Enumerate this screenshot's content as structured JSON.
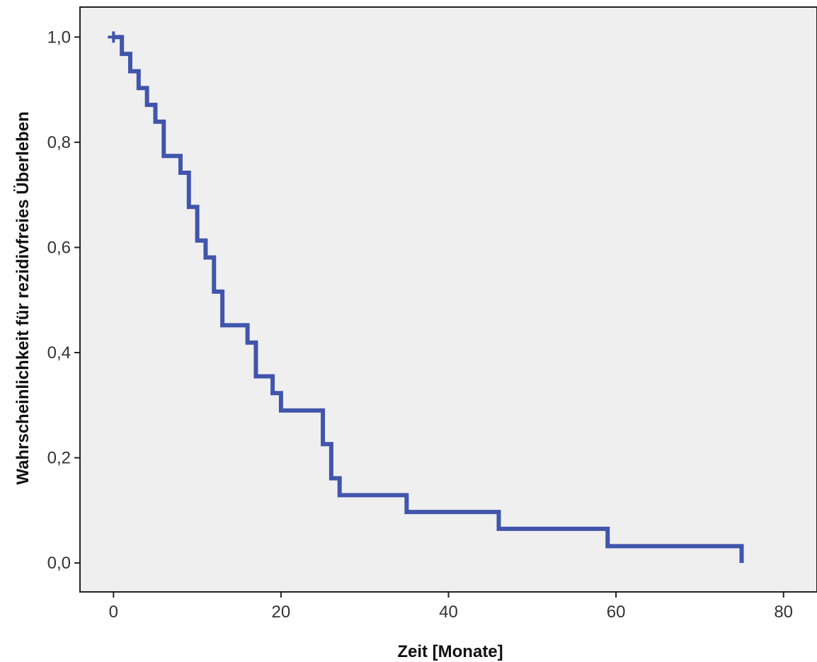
{
  "chart_data": {
    "type": "line",
    "step": true,
    "title": "",
    "xlabel": "Zeit [Monate]",
    "ylabel": "Wahrscheinlichkeit für rezidivfreies Überleben",
    "xlim": [
      -4,
      84
    ],
    "ylim": [
      -0.055,
      1.057
    ],
    "xticks": [
      0,
      20,
      40,
      60,
      80
    ],
    "xtick_labels": [
      "0",
      "20",
      "40",
      "60",
      "80"
    ],
    "yticks": [
      0.0,
      0.2,
      0.4,
      0.6,
      0.8,
      1.0
    ],
    "ytick_labels": [
      "0,0",
      "0,2",
      "0,4",
      "0,6",
      "0,8",
      "1,0"
    ],
    "grid": false,
    "plot_background": "#efefef",
    "series": [
      {
        "color": "#4055ab",
        "x": [
          0,
          1,
          2,
          3,
          4,
          5,
          6,
          8,
          9,
          10,
          11,
          12,
          13,
          16,
          17,
          19,
          20,
          25,
          26,
          27,
          35,
          46,
          59,
          75
        ],
        "y": [
          1.0,
          0.968,
          0.935,
          0.903,
          0.871,
          0.839,
          0.774,
          0.742,
          0.677,
          0.613,
          0.581,
          0.516,
          0.452,
          0.419,
          0.355,
          0.323,
          0.29,
          0.226,
          0.161,
          0.129,
          0.097,
          0.065,
          0.032,
          0.0
        ]
      }
    ],
    "censored": [
      {
        "x": 0,
        "y": 1.0
      }
    ]
  }
}
